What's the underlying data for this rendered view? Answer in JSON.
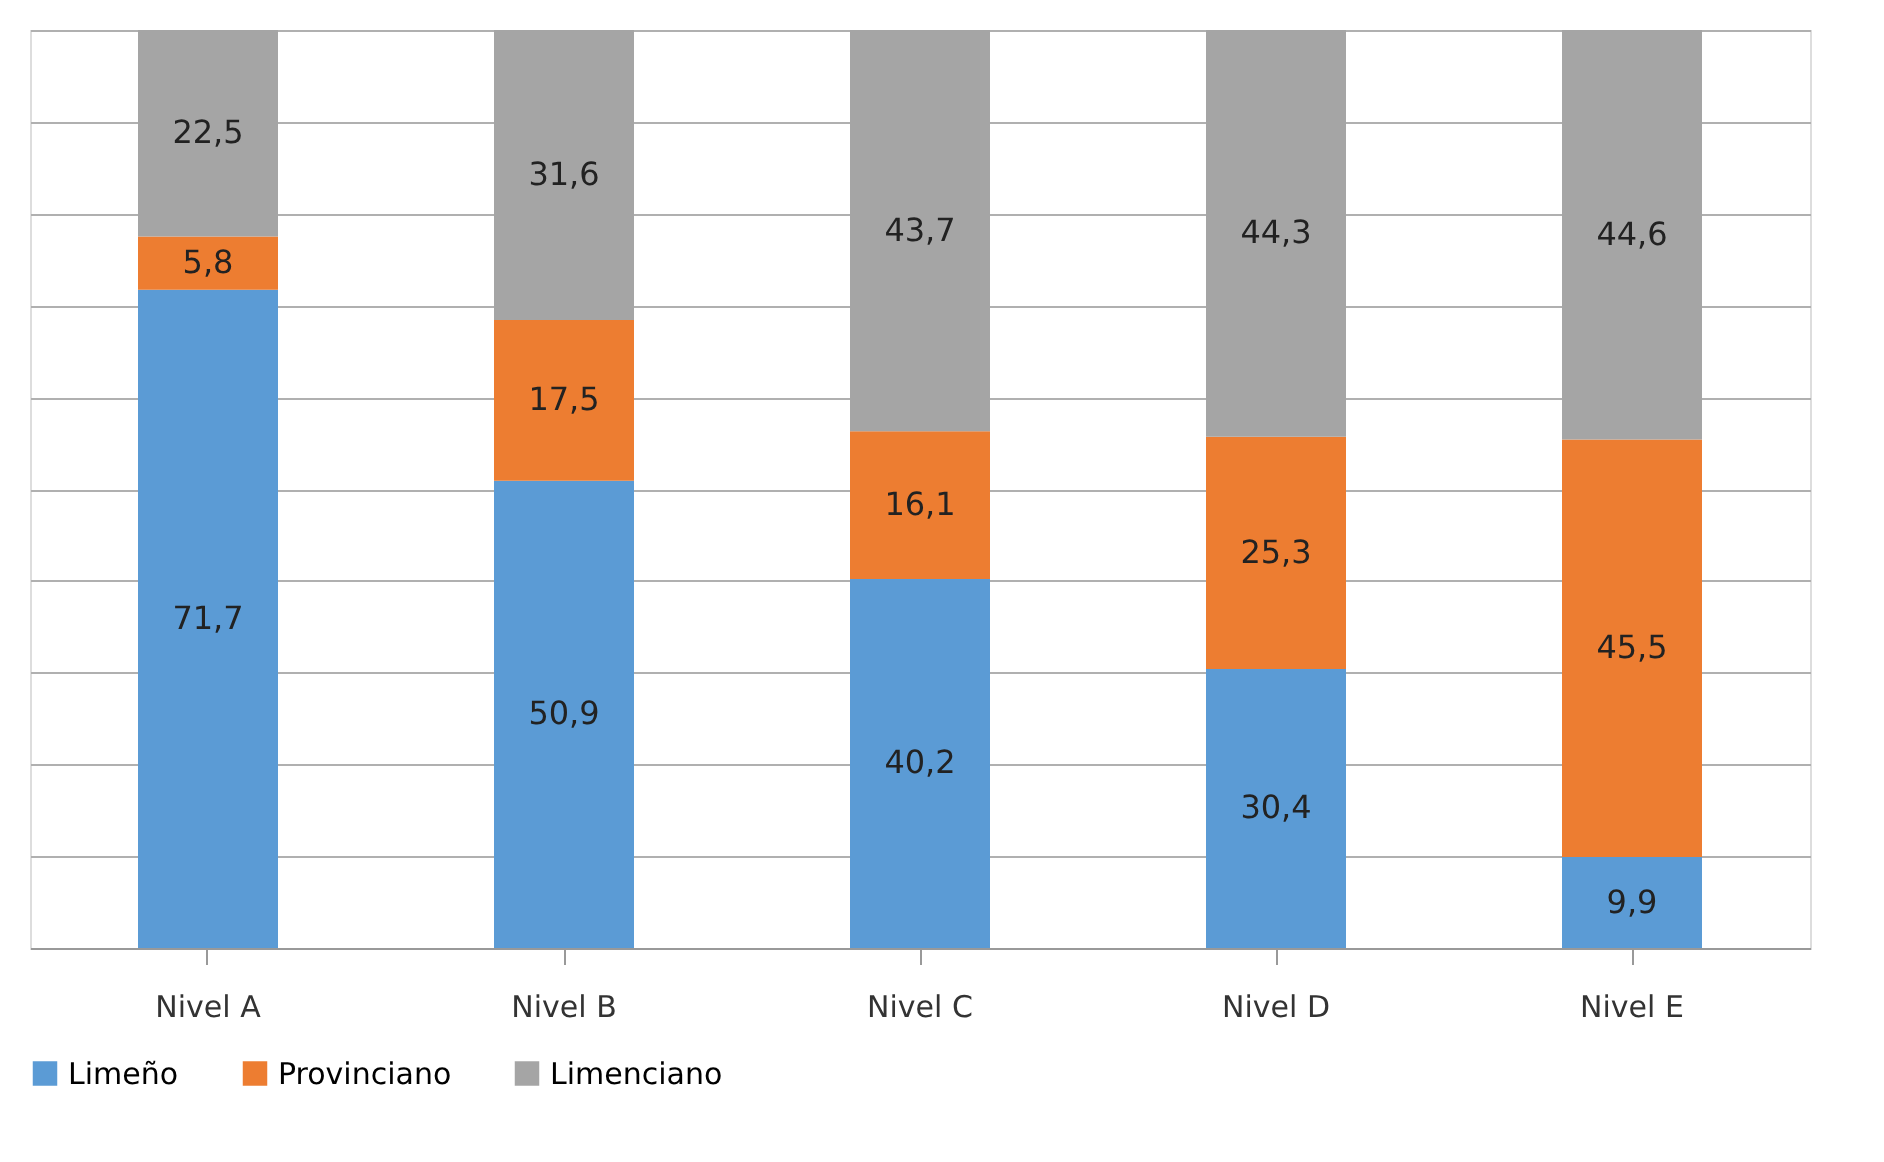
{
  "chart_data": {
    "type": "bar",
    "stacked": true,
    "categories": [
      "Nivel A",
      "Nivel B",
      "Nivel C",
      "Nivel D",
      "Nivel E"
    ],
    "series": [
      {
        "name": "Limeño",
        "color": "#5b9bd5",
        "values": [
          71.7,
          50.9,
          40.2,
          30.4,
          9.9
        ],
        "value_labels": [
          "71,7",
          "50,9",
          "40,2",
          "30,4",
          "9,9"
        ]
      },
      {
        "name": "Provinciano",
        "color": "#ed7d31",
        "values": [
          5.8,
          17.5,
          16.1,
          25.3,
          45.5
        ],
        "value_labels": [
          "5,8",
          "17,5",
          "16,1",
          "25,3",
          "45,5"
        ]
      },
      {
        "name": "Limenciano",
        "color": "#a5a5a5",
        "values": [
          22.5,
          31.6,
          43.7,
          44.3,
          44.6
        ],
        "value_labels": [
          "22,5",
          "31,6",
          "43,7",
          "44,3",
          "44,6"
        ]
      }
    ],
    "tick_labels": "x",
    "grid": "y",
    "legend": "bottom"
  }
}
